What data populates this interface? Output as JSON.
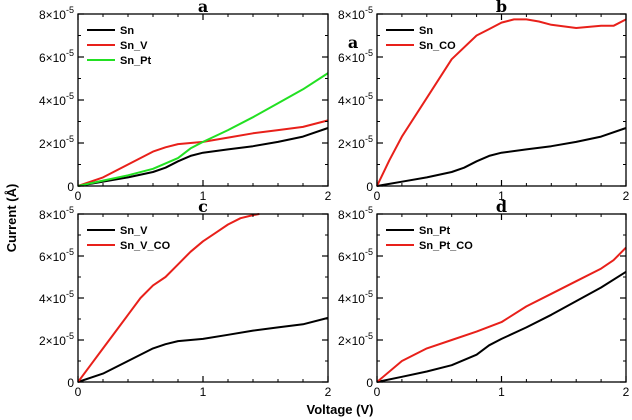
{
  "figure": {
    "xlabel": "Voltage (V)",
    "ylabel": "Current (Å)"
  },
  "chart_data": [
    {
      "type": "line",
      "title": "a",
      "xlim": [
        0,
        2
      ],
      "ylim": [
        0,
        8e-05
      ],
      "xticks": [
        "0",
        "1",
        "2"
      ],
      "yticks": [
        {
          "mant": "0",
          "exp": ""
        },
        {
          "mant": "2×10",
          "exp": "-5"
        },
        {
          "mant": "4×10",
          "exp": "-5"
        },
        {
          "mant": "6×10",
          "exp": "-5"
        },
        {
          "mant": "8×10",
          "exp": "-5"
        }
      ],
      "legend": "top-left",
      "series": [
        {
          "name": "Sn",
          "color": "#000000",
          "x": [
            0,
            0.2,
            0.4,
            0.6,
            0.7,
            0.8,
            0.9,
            1.0,
            1.2,
            1.4,
            1.6,
            1.8,
            2.0
          ],
          "y": [
            0,
            2e-06,
            4e-06,
            6.5e-06,
            8.5e-06,
            1.15e-05,
            1.4e-05,
            1.55e-05,
            1.7e-05,
            1.85e-05,
            2.05e-05,
            2.3e-05,
            2.7e-05
          ]
        },
        {
          "name": "Sn_V",
          "color": "#e8201a",
          "x": [
            0,
            0.2,
            0.4,
            0.6,
            0.7,
            0.8,
            1.0,
            1.2,
            1.4,
            1.6,
            1.8,
            2.0
          ],
          "y": [
            0,
            4e-06,
            1e-05,
            1.6e-05,
            1.8e-05,
            1.95e-05,
            2.05e-05,
            2.25e-05,
            2.45e-05,
            2.6e-05,
            2.75e-05,
            3.05e-05
          ]
        },
        {
          "name": "Sn_Pt",
          "color": "#22e022",
          "x": [
            0,
            0.2,
            0.4,
            0.6,
            0.8,
            0.9,
            1.0,
            1.2,
            1.4,
            1.6,
            1.8,
            2.0
          ],
          "y": [
            0,
            2.5e-06,
            5e-06,
            8e-06,
            1.3e-05,
            1.75e-05,
            2.05e-05,
            2.6e-05,
            3.2e-05,
            3.85e-05,
            4.5e-05,
            5.25e-05
          ]
        }
      ]
    },
    {
      "type": "line",
      "title": "b",
      "inner_label": "a",
      "xlim": [
        0,
        2
      ],
      "ylim": [
        0,
        8e-05
      ],
      "xticks": [
        "0",
        "1",
        "2"
      ],
      "yticks": [
        {
          "mant": "0",
          "exp": ""
        },
        {
          "mant": "2×10",
          "exp": "-5"
        },
        {
          "mant": "4×10",
          "exp": "-5"
        },
        {
          "mant": "6×10",
          "exp": "-5"
        },
        {
          "mant": "8×10",
          "exp": "-5"
        }
      ],
      "legend": "top-left",
      "series": [
        {
          "name": "Sn",
          "color": "#000000",
          "x": [
            0,
            0.2,
            0.4,
            0.6,
            0.7,
            0.8,
            0.9,
            1.0,
            1.2,
            1.4,
            1.6,
            1.8,
            2.0
          ],
          "y": [
            0,
            2e-06,
            4e-06,
            6.5e-06,
            8.5e-06,
            1.15e-05,
            1.4e-05,
            1.55e-05,
            1.7e-05,
            1.85e-05,
            2.05e-05,
            2.3e-05,
            2.7e-05
          ]
        },
        {
          "name": "Sn_CO",
          "color": "#e8201a",
          "x": [
            0,
            0.1,
            0.2,
            0.4,
            0.6,
            0.8,
            0.9,
            1.0,
            1.1,
            1.2,
            1.3,
            1.4,
            1.6,
            1.7,
            1.8,
            1.9,
            2.0
          ],
          "y": [
            0,
            1.2e-05,
            2.3e-05,
            4.1e-05,
            5.9e-05,
            7e-05,
            7.3e-05,
            7.6e-05,
            7.75e-05,
            7.75e-05,
            7.65e-05,
            7.5e-05,
            7.35e-05,
            7.4e-05,
            7.45e-05,
            7.45e-05,
            7.75e-05
          ]
        }
      ]
    },
    {
      "type": "line",
      "title": "c",
      "xlim": [
        0,
        2
      ],
      "ylim": [
        0,
        8e-05
      ],
      "xticks": [
        "0",
        "1",
        "2"
      ],
      "yticks": [
        {
          "mant": "0",
          "exp": ""
        },
        {
          "mant": "2×10",
          "exp": "-5"
        },
        {
          "mant": "4×10",
          "exp": "-5"
        },
        {
          "mant": "6×10",
          "exp": "-5"
        },
        {
          "mant": "8×10",
          "exp": "-5"
        }
      ],
      "legend": "top-left",
      "series": [
        {
          "name": "Sn_V",
          "color": "#000000",
          "x": [
            0,
            0.2,
            0.4,
            0.6,
            0.7,
            0.8,
            1.0,
            1.2,
            1.4,
            1.6,
            1.8,
            2.0
          ],
          "y": [
            0,
            4e-06,
            1e-05,
            1.6e-05,
            1.8e-05,
            1.95e-05,
            2.05e-05,
            2.25e-05,
            2.45e-05,
            2.6e-05,
            2.75e-05,
            3.05e-05
          ]
        },
        {
          "name": "Sn_V_CO",
          "color": "#e8201a",
          "x": [
            0,
            0.1,
            0.2,
            0.3,
            0.4,
            0.5,
            0.6,
            0.7,
            0.8,
            0.9,
            1.0,
            1.1,
            1.2,
            1.3,
            1.4,
            1.45
          ],
          "y": [
            0,
            8e-06,
            1.6e-05,
            2.4e-05,
            3.2e-05,
            4e-05,
            4.6e-05,
            5e-05,
            5.6e-05,
            6.2e-05,
            6.7e-05,
            7.1e-05,
            7.5e-05,
            7.8e-05,
            7.95e-05,
            8e-05
          ]
        }
      ]
    },
    {
      "type": "line",
      "title": "d",
      "xlim": [
        0,
        2
      ],
      "ylim": [
        0,
        8e-05
      ],
      "xticks": [
        "0",
        "1",
        "2"
      ],
      "yticks": [
        {
          "mant": "0",
          "exp": ""
        },
        {
          "mant": "2×10",
          "exp": "-5"
        },
        {
          "mant": "4×10",
          "exp": "-5"
        },
        {
          "mant": "6×10",
          "exp": "-5"
        },
        {
          "mant": "8×10",
          "exp": "-5"
        }
      ],
      "legend": "top-left",
      "series": [
        {
          "name": "Sn_Pt",
          "color": "#000000",
          "x": [
            0,
            0.2,
            0.4,
            0.6,
            0.8,
            0.9,
            1.0,
            1.2,
            1.4,
            1.6,
            1.8,
            2.0
          ],
          "y": [
            0,
            2.5e-06,
            5e-06,
            8e-06,
            1.3e-05,
            1.75e-05,
            2.05e-05,
            2.6e-05,
            3.2e-05,
            3.85e-05,
            4.5e-05,
            5.25e-05
          ]
        },
        {
          "name": "Sn_Pt_CO",
          "color": "#e8201a",
          "x": [
            0,
            0.2,
            0.4,
            0.6,
            0.8,
            1.0,
            1.2,
            1.4,
            1.6,
            1.8,
            1.9,
            2.0
          ],
          "y": [
            0,
            1e-05,
            1.6e-05,
            2e-05,
            2.4e-05,
            2.85e-05,
            3.6e-05,
            4.2e-05,
            4.8e-05,
            5.4e-05,
            5.8e-05,
            6.4e-05
          ]
        }
      ]
    }
  ]
}
